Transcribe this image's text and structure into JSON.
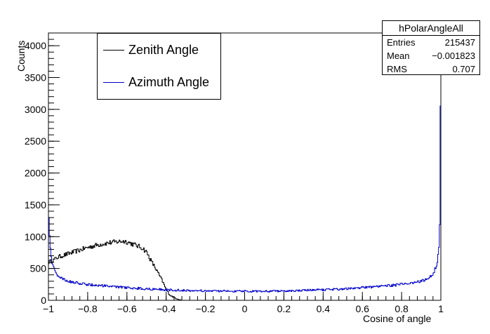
{
  "chart_data": {
    "type": "histogram",
    "title": "",
    "xlabel": "Cosine of angle",
    "ylabel": "Counts",
    "xlim": [
      -1,
      1
    ],
    "ylim": [
      0,
      4200
    ],
    "x_ticks": [
      -1,
      -0.8,
      -0.6,
      -0.4,
      -0.2,
      0,
      0.2,
      0.4,
      0.6,
      0.8,
      1
    ],
    "x_tick_labels": [
      "−1",
      "−0.8",
      "−0.6",
      "−0.4",
      "−0.2",
      "0",
      "0.2",
      "0.4",
      "0.6",
      "0.8",
      "1"
    ],
    "y_ticks": [
      0,
      500,
      1000,
      1500,
      2000,
      2500,
      3000,
      3500,
      4000
    ],
    "y_tick_labels": [
      "0",
      "500",
      "1000",
      "1500",
      "2000",
      "2500",
      "3000",
      "3500",
      "4000"
    ],
    "legend": {
      "placement": "top-left"
    },
    "stats": {
      "name": "hPolarAngleAll",
      "entries_label": "Entries",
      "entries_value": "215437",
      "mean_label": "Mean",
      "mean_value": "−0.001823",
      "rms_label": "RMS",
      "rms_value": "0.707"
    },
    "series": [
      {
        "name": "Zenith Angle",
        "color": "#000000",
        "x": [
          -1.0,
          -0.98,
          -0.95,
          -0.9,
          -0.85,
          -0.8,
          -0.75,
          -0.7,
          -0.65,
          -0.62,
          -0.6,
          -0.55,
          -0.52,
          -0.5,
          -0.48,
          -0.45,
          -0.42,
          -0.4,
          -0.38,
          -0.35,
          -0.33,
          -0.32,
          -0.3,
          1.0
        ],
        "y": [
          600,
          620,
          680,
          730,
          780,
          830,
          870,
          900,
          920,
          930,
          920,
          860,
          820,
          760,
          640,
          480,
          310,
          170,
          80,
          30,
          10,
          0,
          0,
          0
        ]
      },
      {
        "name": "Azimuth Angle",
        "color": "#0000cc",
        "x": [
          -1.0,
          -0.995,
          -0.99,
          -0.98,
          -0.96,
          -0.94,
          -0.92,
          -0.9,
          -0.85,
          -0.8,
          -0.7,
          -0.6,
          -0.5,
          -0.4,
          -0.3,
          -0.2,
          -0.1,
          0.0,
          0.1,
          0.2,
          0.3,
          0.4,
          0.5,
          0.6,
          0.7,
          0.8,
          0.85,
          0.9,
          0.92,
          0.94,
          0.96,
          0.98,
          0.99,
          0.995,
          1.0
        ],
        "y": [
          1500,
          1100,
          800,
          560,
          420,
          360,
          320,
          300,
          270,
          250,
          220,
          200,
          180,
          165,
          155,
          148,
          145,
          143,
          145,
          148,
          155,
          165,
          180,
          200,
          220,
          250,
          270,
          300,
          320,
          360,
          420,
          560,
          800,
          1300,
          4200
        ]
      }
    ]
  }
}
